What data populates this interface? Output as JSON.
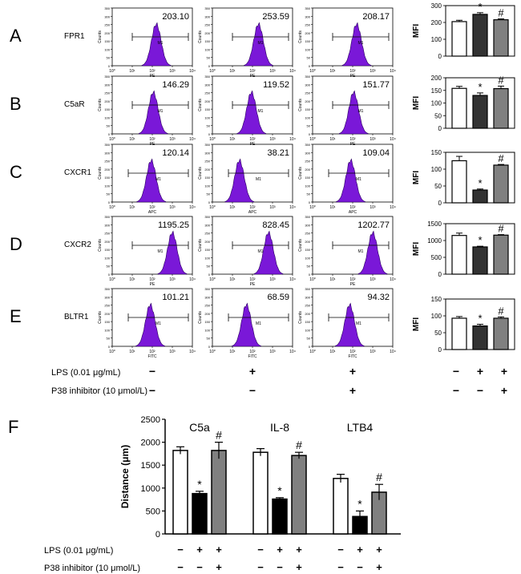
{
  "chart_data": {
    "type": "composite",
    "flow_panels": [
      {
        "letter": "A",
        "receptor": "FPR1",
        "channel": "PE",
        "mfi_labels": [
          "203.10",
          "253.59",
          "208.17"
        ],
        "peak_log": [
          2.2,
          2.3,
          2.2
        ],
        "gate_log": [
          1.0,
          3.8
        ]
      },
      {
        "letter": "B",
        "receptor": "C5aR",
        "channel": "PE",
        "mfi_labels": [
          "146.29",
          "119.52",
          "151.77"
        ],
        "peak_log": [
          2.05,
          1.95,
          2.05
        ],
        "gate_log": [
          1.0,
          3.8
        ]
      },
      {
        "letter": "C",
        "receptor": "CXCR1",
        "channel": "APC",
        "mfi_labels": [
          "120.14",
          "38.21",
          "109.04"
        ],
        "peak_log": [
          1.95,
          1.35,
          1.9
        ],
        "gate_log": [
          0.8,
          3.8
        ]
      },
      {
        "letter": "D",
        "receptor": "CXCR2",
        "channel": "PE",
        "mfi_labels": [
          "1195.25",
          "828.45",
          "1202.77"
        ],
        "peak_log": [
          3.0,
          2.8,
          3.0
        ],
        "gate_log": [
          1.0,
          3.8
        ]
      },
      {
        "letter": "E",
        "receptor": "BLTR1",
        "channel": "FITC",
        "mfi_labels": [
          "101.21",
          "68.59",
          "94.32"
        ],
        "peak_log": [
          1.9,
          1.7,
          1.85
        ],
        "gate_log": [
          0.8,
          3.8
        ]
      }
    ],
    "histogram_axes": {
      "ylabel": "Counts",
      "y_ticks": [
        "0",
        "50",
        "100",
        "150",
        "200",
        "250",
        "300",
        "350"
      ],
      "x_ticks": [
        "10⁰",
        "10¹",
        "10²",
        "10³",
        "10⁴"
      ],
      "gate_label": "M1"
    },
    "mfi_bars": [
      {
        "ylabel": "MFI",
        "ylim": [
          0,
          300
        ],
        "ticks": [
          "0",
          "100",
          "200",
          "300"
        ],
        "values": [
          205,
          248,
          216
        ],
        "errors": [
          8,
          10,
          5
        ],
        "marks": [
          "",
          "*",
          "#"
        ]
      },
      {
        "ylabel": "MFI",
        "ylim": [
          0,
          200
        ],
        "ticks": [
          "0",
          "50",
          "100",
          "150",
          "200"
        ],
        "values": [
          158,
          130,
          157
        ],
        "errors": [
          8,
          10,
          10
        ],
        "marks": [
          "",
          "*",
          "#"
        ]
      },
      {
        "ylabel": "MFI",
        "ylim": [
          0,
          150
        ],
        "ticks": [
          "0",
          "50",
          "100",
          "150"
        ],
        "values": [
          125,
          38,
          112
        ],
        "errors": [
          13,
          3,
          2
        ],
        "marks": [
          "",
          "*",
          "#"
        ]
      },
      {
        "ylabel": "MFI",
        "ylim": [
          0,
          1500
        ],
        "ticks": [
          "0",
          "500",
          "1000",
          "1500"
        ],
        "values": [
          1150,
          810,
          1160
        ],
        "errors": [
          70,
          20,
          15
        ],
        "marks": [
          "",
          "*",
          "#"
        ]
      },
      {
        "ylabel": "MFI",
        "ylim": [
          0,
          150
        ],
        "ticks": [
          "0",
          "50",
          "100",
          "150"
        ],
        "values": [
          93,
          70,
          93
        ],
        "errors": [
          5,
          5,
          4
        ],
        "marks": [
          "",
          "*",
          "#"
        ]
      }
    ],
    "treatments": {
      "lps_label": "LPS (0.01 μg/mL)",
      "p38_label": "P38 inhibitor (10 μmol/L)",
      "lps": [
        "−",
        "+",
        "+"
      ],
      "p38": [
        "−",
        "−",
        "+"
      ]
    },
    "panel_f": {
      "letter": "F",
      "ylabel": "Distance (μm)",
      "ylim": [
        0,
        2500
      ],
      "ticks": [
        "0",
        "500",
        "1000",
        "1500",
        "2000",
        "2500"
      ],
      "groups": [
        {
          "name": "C5a",
          "values": [
            1820,
            880,
            1820
          ],
          "errors": [
            80,
            50,
            180
          ],
          "marks": [
            "",
            "*",
            "#"
          ]
        },
        {
          "name": "IL-8",
          "values": [
            1780,
            760,
            1710
          ],
          "errors": [
            80,
            30,
            70
          ],
          "marks": [
            "",
            "*",
            "#"
          ]
        },
        {
          "name": "LTB4",
          "values": [
            1210,
            380,
            910
          ],
          "errors": [
            90,
            120,
            170
          ],
          "marks": [
            "",
            "*",
            "#"
          ]
        }
      ],
      "lps_label": "LPS (0.01 μg/mL)",
      "p38_label": "P38 inhibitor (10 μmol/L)"
    },
    "bar_colors": [
      "#ffffff",
      "#333333",
      "#808080"
    ],
    "histogram_fill": "#7a18d8"
  }
}
